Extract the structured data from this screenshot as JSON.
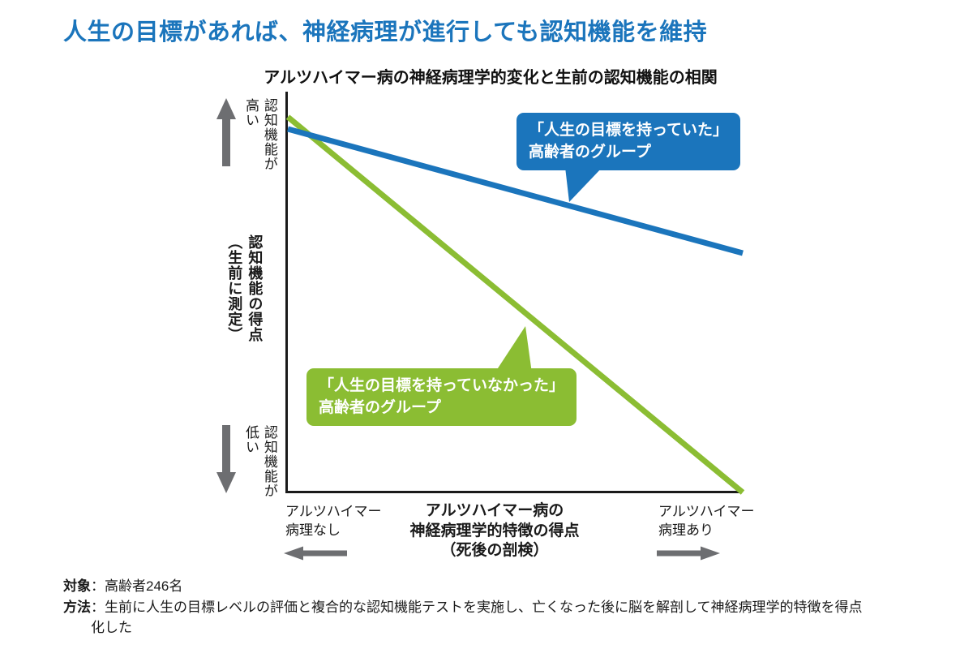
{
  "page_title": "人生の目標があれば、神経病理が進行しても認知機能を維持",
  "chart": {
    "title": "アルツハイマー病の神経病理学的変化と生前の認知機能の相関",
    "y_axis": {
      "top_col1": "認知機能が",
      "top_col2": "高い",
      "mid_col1": "認知機能の得点",
      "mid_col2": "（生前に測定）",
      "bottom_col1": "認知機能が",
      "bottom_col2": "低い"
    },
    "x_axis": {
      "left_line1": "アルツハイマー",
      "left_line2": "病理なし",
      "center_line1": "アルツハイマー病の",
      "center_line2": "神経病理学的特徴の得点",
      "center_line3": "（死後の剖検）",
      "right_line1": "アルツハイマー",
      "right_line2": "病理あり"
    },
    "callouts": {
      "purpose": {
        "line1": "「人生の目標を持っていた」",
        "line2": "高齢者のグループ",
        "color": "#1b75bc"
      },
      "no_purpose": {
        "line1": "「人生の目標を持っていなかった」",
        "line2": "高齢者のグループ",
        "color": "#8bbd33"
      }
    }
  },
  "chart_data": {
    "type": "line",
    "title": "アルツハイマー病の神経病理学的変化と生前の認知機能の相関",
    "xlabel": "アルツハイマー病の神経病理学的特徴の得点（死後の剖検）",
    "ylabel": "認知機能の得点（生前に測定）",
    "x_axis_qualitative": {
      "left": "アルツハイマー病理なし",
      "right": "アルツハイマー病理あり"
    },
    "y_axis_qualitative": {
      "top": "認知機能が高い",
      "bottom": "認知機能が低い"
    },
    "axis_numeric": false,
    "grid": false,
    "legend_position": "callouts-on-plot",
    "series": [
      {
        "name": "「人生の目標を持っていた」高齢者のグループ",
        "color": "#1b75bc",
        "points_norm": [
          [
            0,
            0.907
          ],
          [
            1,
            0.598
          ]
        ]
      },
      {
        "name": "「人生の目標を持っていなかった」高齢者のグループ",
        "color": "#8bbd33",
        "points_norm": [
          [
            0,
            0.937
          ],
          [
            1,
            0.002
          ]
        ]
      }
    ]
  },
  "footer": {
    "subject_label": "対象",
    "subject_text": "：高齢者246名",
    "method_label": "方法",
    "method_line1": "：生前に人生の目標レベルの評価と複合的な認知機能テストを実施し、亡くなった後に脳を解剖して神経病理学的特徴を得点",
    "method_line2": "化した"
  },
  "colors": {
    "title_blue": "#1b75bc",
    "line_blue": "#1b75bc",
    "line_green": "#8bbd33",
    "arrow_gray": "#6d6e71",
    "axis_black": "#1a1a1a"
  }
}
